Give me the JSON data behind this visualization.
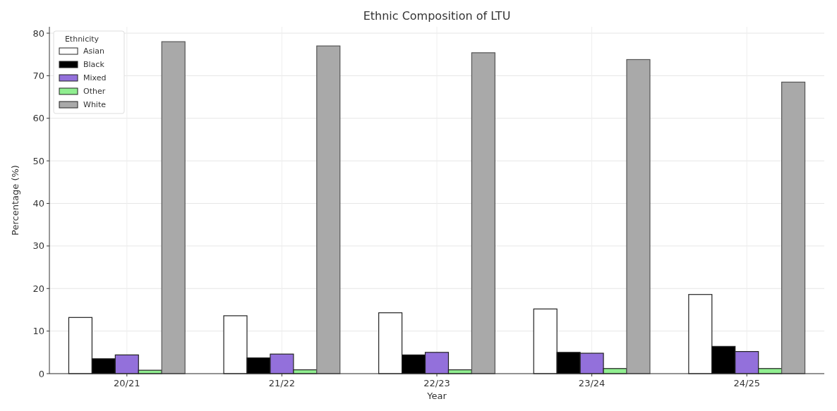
{
  "chart_data": {
    "type": "bar",
    "title": "Ethnic Composition of LTU",
    "xlabel": "Year",
    "ylabel": "Percentage (%)",
    "legend_title": "Ethnicity",
    "categories": [
      "20/21",
      "21/22",
      "22/23",
      "23/24",
      "24/25"
    ],
    "series": [
      {
        "name": "Asian",
        "color": "#ffffff",
        "values": [
          13.2,
          13.6,
          14.3,
          15.2,
          18.6
        ]
      },
      {
        "name": "Black",
        "color": "#000000",
        "values": [
          3.5,
          3.7,
          4.4,
          5.0,
          6.4
        ]
      },
      {
        "name": "Mixed",
        "color": "#9370db",
        "values": [
          4.4,
          4.6,
          5.0,
          4.8,
          5.2
        ]
      },
      {
        "name": "Other",
        "color": "#90ee90",
        "values": [
          0.8,
          0.9,
          0.9,
          1.2,
          1.2
        ]
      },
      {
        "name": "White",
        "color": "#a9a9a9",
        "values": [
          78.0,
          77.0,
          75.4,
          73.8,
          68.5
        ]
      }
    ],
    "ylim": [
      0,
      81.5
    ],
    "yticks": [
      0,
      10,
      20,
      30,
      40,
      50,
      60,
      70,
      80
    ],
    "grid": true,
    "legend": "top left"
  }
}
